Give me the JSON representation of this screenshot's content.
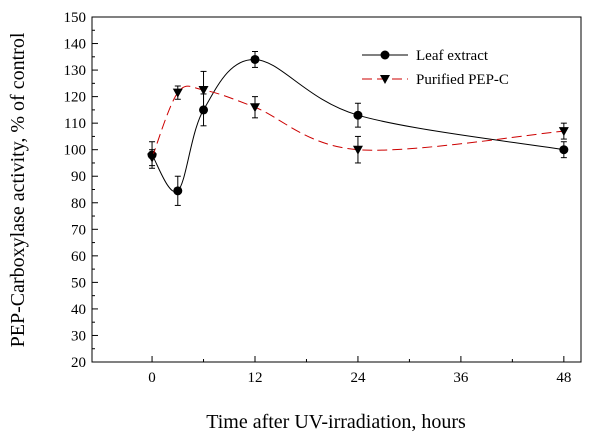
{
  "chart_data": {
    "type": "line",
    "xlabel": "Time after UV-irradiation, hours",
    "ylabel": "PEP-Carboxylase activity, % of control",
    "xlim": [
      -7,
      50
    ],
    "ylim": [
      20,
      150
    ],
    "xticks": [
      0,
      12,
      24,
      36,
      48
    ],
    "yticks": [
      20,
      30,
      40,
      50,
      60,
      70,
      80,
      90,
      100,
      110,
      120,
      130,
      140,
      150
    ],
    "minor_xticks": [
      6,
      18,
      30,
      42
    ],
    "minor_yticks": [
      25,
      35,
      45,
      55,
      65,
      75,
      85,
      95,
      105,
      115,
      125,
      135,
      145
    ],
    "grid": false,
    "legend_position": "top-right",
    "series": [
      {
        "name": "Leaf extract",
        "marker": "circle",
        "line_style": "solid",
        "color": "#000000",
        "x": [
          0,
          3,
          6,
          12,
          24,
          48
        ],
        "y": [
          98,
          84.5,
          115,
          134,
          113,
          100
        ],
        "err": [
          5,
          5.5,
          6,
          3,
          4.5,
          3
        ]
      },
      {
        "name": "Purified PEP-C",
        "marker": "triangle-down",
        "line_style": "dashed",
        "color": "#cc0000",
        "x": [
          0,
          3,
          6,
          12,
          24,
          48
        ],
        "y": [
          97,
          121.5,
          122.5,
          116,
          100,
          107
        ],
        "err": [
          3,
          2.5,
          7,
          4,
          5,
          3
        ]
      }
    ]
  }
}
